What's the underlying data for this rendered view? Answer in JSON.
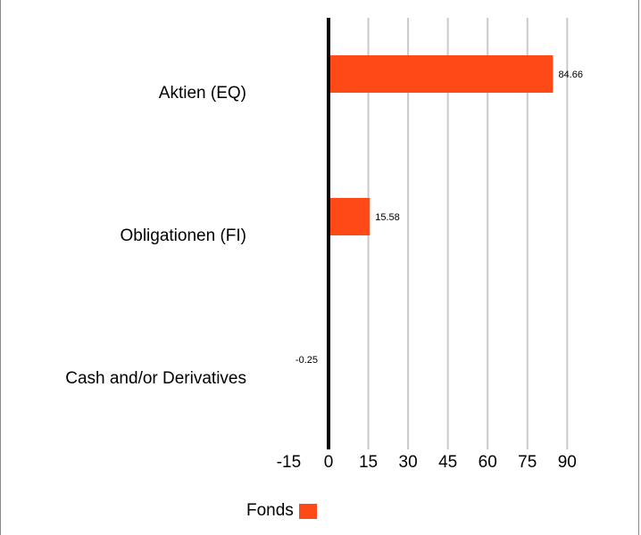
{
  "chart_data": {
    "type": "bar",
    "orientation": "horizontal",
    "categories": [
      "Aktien (EQ)",
      "Obligationen (FI)",
      "Cash and/or Derivatives"
    ],
    "series": [
      {
        "name": "Fonds",
        "values": [
          84.66,
          15.58,
          -0.25
        ],
        "labels": [
          "84.66",
          "15.58",
          "-0.25"
        ],
        "color": "#ff4a17"
      }
    ],
    "xlim": [
      -15,
      90
    ],
    "xticks": [
      -15,
      0,
      15,
      30,
      45,
      60,
      75,
      90
    ],
    "xtick_labels": [
      "-15",
      "0",
      "15",
      "30",
      "45",
      "60",
      "75",
      "90"
    ],
    "grid": "vertical",
    "legend_position": "bottom"
  },
  "legend": {
    "label": "Fonds",
    "color": "#ff4a17"
  }
}
